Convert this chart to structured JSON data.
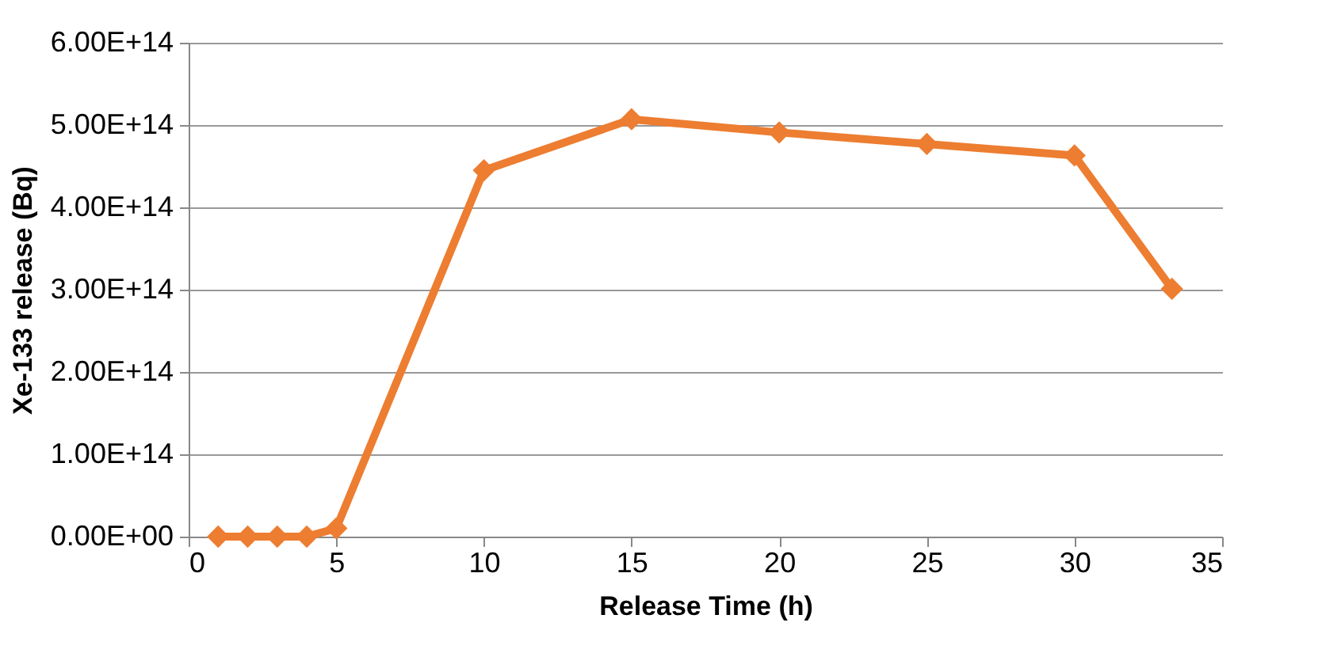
{
  "chart_data": {
    "type": "line",
    "xlabel": "Release Time (h)",
    "ylabel": "Xe-133 release (Bq)",
    "x": [
      1,
      2,
      3,
      4,
      5,
      10,
      15,
      20,
      25,
      30,
      33.3
    ],
    "series": [
      {
        "color": "#ed7d31",
        "values": [
          0,
          0,
          0,
          0,
          10000000000000.0,
          445000000000000.0,
          507000000000000.0,
          491000000000000.0,
          477000000000000.0,
          463000000000000.0,
          301000000000000.0
        ]
      }
    ],
    "xlim": [
      0,
      35
    ],
    "xticks": [
      0,
      5,
      10,
      15,
      20,
      25,
      30,
      35
    ],
    "ylim": [
      0,
      600000000000000.0
    ],
    "yticks": [
      {
        "value": 0,
        "label": "0.00E+00"
      },
      {
        "value": 100000000000000.0,
        "label": "1.00E+14"
      },
      {
        "value": 200000000000000.0,
        "label": "2.00E+14"
      },
      {
        "value": 300000000000000.0,
        "label": "3.00E+14"
      },
      {
        "value": 400000000000000.0,
        "label": "4.00E+14"
      },
      {
        "value": 500000000000000.0,
        "label": "5.00E+14"
      },
      {
        "value": 600000000000000.0,
        "label": "6.00E+14"
      }
    ],
    "grid": "y",
    "marker": "diamond",
    "line_style": "solid",
    "legend": false
  }
}
